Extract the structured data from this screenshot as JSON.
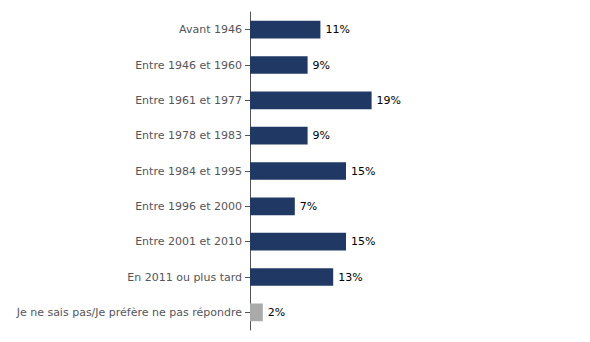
{
  "chart_data": {
    "type": "bar",
    "orientation": "horizontal",
    "categories": [
      "Avant 1946",
      "Entre 1946 et 1960",
      "Entre 1961 et 1977",
      "Entre 1978 et 1983",
      "Entre 1984 et 1995",
      "Entre 1996 et 2000",
      "Entre 2001 et 2010",
      "En 2011 ou plus tard",
      "Je ne sais pas/Je préfère ne pas répondre"
    ],
    "values": [
      11,
      9,
      19,
      9,
      15,
      7,
      15,
      13,
      2
    ],
    "value_labels": [
      "11%",
      "9%",
      "19%",
      "9%",
      "15%",
      "7%",
      "15%",
      "13%",
      "2%"
    ],
    "colors": [
      "#1F3864",
      "#1F3864",
      "#1F3864",
      "#1F3864",
      "#1F3864",
      "#1F3864",
      "#1F3864",
      "#1F3864",
      "#AAAAAA"
    ],
    "xlim": [
      0,
      50
    ],
    "data_labels": true,
    "tick_labels": "y",
    "grid": false
  }
}
